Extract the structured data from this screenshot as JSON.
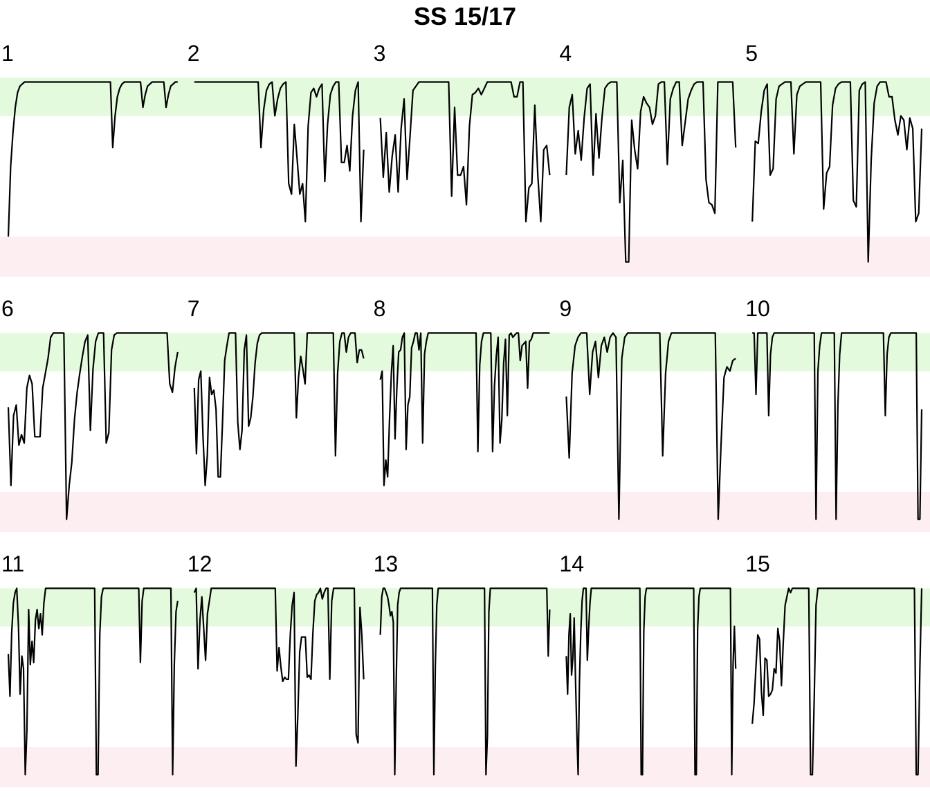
{
  "title": "SS 15/17",
  "colors": {
    "high_band": "#e3fadc",
    "low_band": "#fdeff1",
    "line": "#000000"
  },
  "chart_data": {
    "type": "line",
    "title": "SS 15/17",
    "xlabel": "",
    "ylabel": "",
    "ylim": [
      0,
      100
    ],
    "grid": false,
    "legend": "none",
    "bands": {
      "high": [
        76,
        94
      ],
      "low": [
        0,
        19
      ]
    },
    "panels": [
      {
        "label": "1",
        "values": [
          19,
          52,
          68,
          80,
          87,
          90,
          91,
          92,
          92,
          92,
          92,
          92,
          92,
          92,
          92,
          92,
          92,
          92,
          92,
          92,
          92,
          92,
          92,
          92,
          92,
          92,
          92,
          92,
          92,
          92,
          92,
          92,
          92,
          92,
          92,
          92,
          92,
          92,
          92,
          92,
          92,
          92,
          92,
          92,
          92,
          61,
          76,
          85,
          89,
          91,
          92,
          92,
          92,
          92,
          92,
          92,
          92,
          92,
          80,
          86,
          90,
          91,
          92,
          92,
          92,
          92,
          92,
          92,
          80,
          86,
          90,
          91,
          92,
          92
        ]
      },
      {
        "label": "2",
        "values": [
          92,
          92,
          92,
          92,
          92,
          92,
          92,
          92,
          92,
          92,
          92,
          92,
          92,
          92,
          92,
          92,
          92,
          92,
          92,
          92,
          92,
          92,
          92,
          92,
          61,
          79,
          88,
          91,
          92,
          76,
          84,
          89,
          91,
          92,
          44,
          39,
          72,
          56,
          39,
          44,
          26,
          71,
          87,
          89,
          85,
          89,
          91,
          45,
          72,
          86,
          90,
          92,
          92,
          54,
          54,
          62,
          50,
          76,
          88,
          92,
          26,
          60
        ]
      },
      {
        "label": "3",
        "values": [
          75,
          47,
          68,
          40,
          57,
          67,
          40,
          70,
          84,
          46,
          66,
          88,
          90,
          92,
          92,
          92,
          92,
          92,
          92,
          92,
          92,
          92,
          92,
          92,
          38,
          80,
          48,
          48,
          52,
          34,
          71,
          86,
          87,
          89,
          86,
          89,
          92,
          92,
          92,
          92,
          92,
          92,
          92,
          92,
          92,
          85,
          85,
          92,
          92,
          26,
          42,
          44,
          81,
          48,
          26,
          60,
          62,
          48
        ]
      },
      {
        "label": "4",
        "values": [
          48,
          80,
          86,
          58,
          69,
          55,
          75,
          89,
          91,
          48,
          77,
          56,
          75,
          89,
          91,
          92,
          92,
          92,
          35,
          55,
          7,
          7,
          74,
          60,
          51,
          78,
          85,
          82,
          80,
          72,
          76,
          91,
          92,
          92,
          53,
          84,
          89,
          92,
          92,
          62,
          73,
          84,
          88,
          91,
          92,
          92,
          92,
          46,
          35,
          34,
          30,
          92,
          92,
          92,
          92,
          92,
          92,
          61
        ]
      },
      {
        "label": "5",
        "values": [
          26,
          64,
          63,
          78,
          88,
          91,
          48,
          51,
          84,
          90,
          91,
          92,
          92,
          92,
          58,
          86,
          90,
          91,
          92,
          92,
          92,
          92,
          92,
          92,
          32,
          49,
          52,
          81,
          89,
          91,
          92,
          92,
          92,
          92,
          36,
          33,
          88,
          91,
          92,
          7,
          55,
          82,
          90,
          92,
          92,
          92,
          85,
          85,
          74,
          67,
          76,
          74,
          60,
          75,
          70,
          26,
          30,
          70
        ]
      },
      {
        "label": "6",
        "values": [
          59,
          22,
          55,
          60,
          41,
          46,
          42,
          68,
          74,
          70,
          45,
          45,
          45,
          68,
          75,
          82,
          92,
          94,
          94,
          94,
          94,
          94,
          6,
          22,
          33,
          53,
          66,
          75,
          83,
          90,
          93,
          48,
          77,
          90,
          94,
          94,
          94,
          42,
          47,
          86,
          93,
          94,
          94,
          94,
          94,
          94,
          94,
          94,
          94,
          94,
          94,
          94,
          94,
          94,
          94,
          94,
          94,
          94,
          94,
          94,
          94,
          70,
          66,
          78,
          85
        ]
      },
      {
        "label": "7",
        "values": [
          68,
          37,
          72,
          76,
          45,
          22,
          36,
          73,
          65,
          67,
          58,
          26,
          26,
          52,
          81,
          88,
          94,
          94,
          94,
          94,
          52,
          39,
          48,
          86,
          93,
          50,
          54,
          64,
          80,
          89,
          93,
          94,
          94,
          94,
          94,
          94,
          94,
          94,
          94,
          94,
          94,
          94,
          94,
          94,
          94,
          94,
          94,
          54,
          73,
          83,
          77,
          70,
          94,
          94,
          94,
          94,
          94,
          94,
          94,
          94,
          94,
          94,
          94,
          94,
          94,
          36,
          75,
          90,
          94,
          94,
          85,
          92,
          94,
          94,
          94,
          80,
          86,
          86,
          82
        ]
      },
      {
        "label": "8",
        "values": [
          72,
          76,
          22,
          34,
          26,
          53,
          75,
          88,
          44,
          68,
          85,
          86,
          92,
          94,
          39,
          60,
          64,
          87,
          90,
          94,
          94,
          86,
          94,
          42,
          84,
          90,
          94,
          94,
          94,
          94,
          94,
          94,
          94,
          94,
          94,
          94,
          94,
          94,
          94,
          94,
          94,
          94,
          94,
          94,
          94,
          94,
          94,
          94,
          94,
          94,
          94,
          94,
          94,
          38,
          79,
          90,
          94,
          94,
          94,
          94,
          94,
          38,
          69,
          83,
          92,
          42,
          53,
          80,
          91,
          55,
          93,
          94,
          92,
          93,
          94,
          94,
          81,
          88,
          89,
          90,
          68,
          90,
          91,
          94,
          94,
          94,
          94,
          94,
          94,
          94,
          94,
          94,
          94
        ]
      },
      {
        "label": "9",
        "values": [
          64,
          35,
          75,
          88,
          92,
          94,
          94,
          94,
          65,
          85,
          90,
          73,
          88,
          92,
          85,
          92,
          94,
          92,
          6,
          82,
          92,
          94,
          94,
          94,
          94,
          94,
          94,
          94,
          94,
          94,
          94,
          94,
          94,
          36,
          75,
          90,
          94,
          94,
          94,
          94,
          94,
          94,
          94,
          94,
          94,
          94,
          94,
          94,
          94,
          94,
          94,
          94,
          6,
          42,
          73,
          78,
          76,
          81,
          82
        ]
      },
      {
        "label": "10",
        "values": [
          94,
          94,
          65,
          94,
          94,
          94,
          94,
          94,
          94,
          55,
          84,
          92,
          94,
          94,
          94,
          94,
          94,
          94,
          94,
          94,
          94,
          94,
          94,
          94,
          94,
          94,
          94,
          94,
          94,
          94,
          94,
          94,
          94,
          94,
          94,
          6,
          76,
          88,
          94,
          94,
          94,
          94,
          94,
          94,
          94,
          94,
          6,
          60,
          84,
          94,
          94,
          94,
          94,
          94,
          94,
          94,
          94,
          94,
          94,
          94,
          94,
          94,
          94,
          94,
          94,
          94,
          94,
          94,
          94,
          94,
          94,
          94,
          94,
          55,
          84,
          92,
          94,
          94,
          94,
          94,
          94,
          94,
          94,
          94,
          94,
          94,
          94,
          94,
          94,
          94,
          94,
          6,
          6,
          58
        ]
      },
      {
        "label": "11",
        "values": [
          63,
          43,
          73,
          87,
          92,
          94,
          76,
          44,
          62,
          56,
          6,
          27,
          84,
          58,
          69,
          59,
          79,
          84,
          75,
          82,
          72,
          87,
          94,
          94,
          94,
          94,
          94,
          94,
          94,
          94,
          94,
          94,
          94,
          94,
          94,
          94,
          94,
          94,
          94,
          94,
          94,
          94,
          94,
          94,
          94,
          94,
          94,
          94,
          94,
          94,
          94,
          94,
          6,
          6,
          72,
          90,
          94,
          94,
          94,
          94,
          94,
          94,
          94,
          94,
          94,
          94,
          94,
          94,
          94,
          94,
          94,
          94,
          94,
          94,
          94,
          94,
          94,
          94,
          59,
          88,
          94,
          94,
          94,
          94,
          94,
          94,
          94,
          94,
          94,
          94,
          94,
          94,
          94,
          94,
          94,
          94,
          94,
          6,
          58,
          83,
          88
        ]
      },
      {
        "label": "12",
        "values": [
          92,
          94,
          56,
          79,
          90,
          75,
          60,
          82,
          88,
          94,
          94,
          94,
          94,
          94,
          94,
          94,
          94,
          94,
          94,
          94,
          94,
          94,
          94,
          94,
          94,
          94,
          94,
          94,
          94,
          94,
          94,
          94,
          94,
          94,
          94,
          94,
          94,
          94,
          94,
          94,
          94,
          94,
          94,
          94,
          55,
          66,
          57,
          50,
          52,
          51,
          51,
          72,
          86,
          92,
          10,
          34,
          64,
          71,
          71,
          71,
          52,
          53,
          51,
          73,
          88,
          91,
          92,
          94,
          89,
          92,
          94,
          94,
          51,
          88,
          94,
          94,
          94,
          94,
          94,
          94,
          94,
          94,
          94,
          94,
          94,
          94,
          25,
          21,
          85,
          72,
          51
        ]
      },
      {
        "label": "13",
        "values": [
          72,
          90,
          94,
          94,
          92,
          90,
          86,
          81,
          83,
          78,
          6,
          50,
          86,
          92,
          94,
          94,
          94,
          94,
          94,
          94,
          94,
          94,
          94,
          94,
          94,
          94,
          94,
          94,
          94,
          94,
          94,
          94,
          94,
          94,
          94,
          94,
          94,
          6,
          57,
          86,
          94,
          94,
          94,
          94,
          94,
          94,
          94,
          94,
          94,
          94,
          94,
          94,
          94,
          94,
          94,
          94,
          94,
          94,
          94,
          94,
          94,
          94,
          94,
          94,
          94,
          94,
          94,
          94,
          94,
          94,
          94,
          94,
          94,
          6,
          24,
          83,
          94,
          94,
          94,
          94,
          94,
          94,
          94,
          94,
          94,
          94,
          94,
          94,
          94,
          94,
          94,
          94,
          94,
          94,
          94,
          94,
          94,
          94,
          94,
          94,
          94,
          94,
          94,
          94,
          94,
          94,
          94,
          94,
          94,
          94,
          94,
          94,
          94,
          94,
          94,
          94,
          62,
          84
        ]
      },
      {
        "label": "14",
        "values": [
          62,
          44,
          72,
          82,
          53,
          61,
          80,
          51,
          26,
          6,
          50,
          73,
          88,
          94,
          94,
          94,
          60,
          75,
          87,
          94,
          94,
          94,
          94,
          94,
          94,
          94,
          94,
          94,
          94,
          94,
          94,
          94,
          94,
          94,
          94,
          94,
          94,
          94,
          94,
          94,
          94,
          94,
          94,
          94,
          94,
          94,
          94,
          94,
          94,
          94,
          94,
          94,
          94,
          94,
          94,
          94,
          94,
          6,
          6,
          74,
          90,
          94,
          94,
          94,
          94,
          94,
          94,
          94,
          94,
          94,
          94,
          94,
          94,
          94,
          94,
          94,
          94,
          94,
          94,
          94,
          94,
          94,
          94,
          94,
          94,
          94,
          94,
          94,
          94,
          94,
          94,
          94,
          94,
          94,
          94,
          94,
          94,
          94,
          6,
          6,
          75,
          90,
          94,
          94,
          94,
          94,
          94,
          94,
          94,
          94,
          94,
          94,
          94,
          94,
          94,
          94,
          94,
          94,
          94,
          94,
          94,
          94,
          94,
          94,
          94,
          94,
          6,
          58,
          76,
          56
        ]
      },
      {
        "label": "15",
        "values": [
          30,
          40,
          57,
          72,
          70,
          45,
          34,
          61,
          60,
          43,
          44,
          46,
          56,
          54,
          75,
          69,
          48,
          68,
          86,
          90,
          94,
          92,
          94,
          94,
          94,
          94,
          94,
          94,
          94,
          94,
          94,
          94,
          6,
          6,
          42,
          86,
          94,
          94,
          94,
          94,
          94,
          94,
          94,
          94,
          94,
          94,
          94,
          94,
          94,
          94,
          94,
          94,
          94,
          94,
          94,
          94,
          94,
          94,
          94,
          94,
          94,
          94,
          94,
          94,
          94,
          94,
          94,
          94,
          94,
          94,
          94,
          94,
          94,
          94,
          94,
          94,
          94,
          94,
          94,
          94,
          94,
          94,
          94,
          94,
          94,
          94,
          94,
          94,
          94,
          94,
          6,
          6,
          57,
          94
        ]
      }
    ]
  }
}
